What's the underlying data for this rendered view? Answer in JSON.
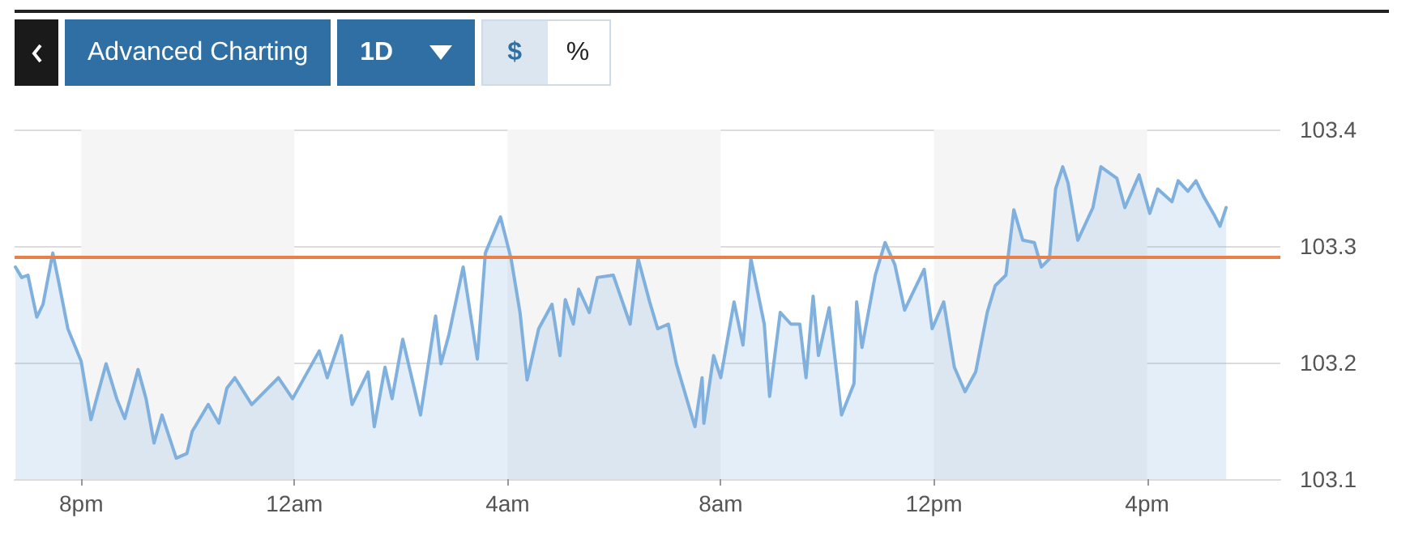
{
  "chart_data": {
    "type": "area",
    "annotations": [
      "Advanced Charting",
      "1D",
      "$",
      "%"
    ],
    "x": [
      "--01-01T18:46",
      "--01-01T18:53",
      "--01-01T19:00",
      "--01-01T19:10",
      "--01-01T19:17",
      "--01-01T19:28",
      "--01-01T19:35",
      "--01-01T19:45",
      "--01-01T20:00",
      "--01-01T20:11",
      "--01-01T20:18",
      "--01-01T20:28",
      "--01-01T20:40",
      "--01-01T20:49",
      "--01-01T21:04",
      "--01-01T21:13",
      "--01-01T21:22",
      "--01-01T21:31",
      "--01-01T21:47",
      "--01-01T21:59",
      "--01-01T22:05",
      "--01-01T22:23",
      "--01-01T22:35",
      "--01-01T22:44",
      "--01-01T22:53",
      "--01-01T23:12",
      "--01-01T23:42",
      "--01-01T23:58",
      "--01-02T00:28",
      "--01-02T00:37",
      "--01-02T00:53",
      "--01-02T01:05",
      "--01-02T01:23",
      "--01-02T01:30",
      "--01-02T01:42",
      "--01-02T01:50",
      "--01-02T02:02",
      "--01-02T02:22",
      "--01-02T02:39",
      "--01-02T02:45",
      "--01-02T02:54",
      "--01-02T03:10",
      "--01-02T03:26",
      "--01-02T03:35",
      "--01-02T03:52",
      "--01-02T04:04",
      "--01-02T04:14",
      "--01-02T04:22",
      "--01-02T04:35",
      "--01-02T04:50",
      "--01-02T04:59",
      "--01-02T05:05",
      "--01-02T05:14",
      "--01-02T05:20",
      "--01-02T05:32",
      "--01-02T05:41",
      "--01-02T05:59",
      "--01-02T06:18",
      "--01-02T06:27",
      "--01-02T06:40",
      "--01-02T06:49",
      "--01-02T07:01",
      "--01-02T07:10",
      "--01-02T07:29",
      "--01-02T07:31",
      "--01-02T07:39",
      "--01-02T07:41",
      "--01-02T07:52",
      "--01-02T08:00",
      "--01-02T08:15",
      "--01-02T08:25",
      "--01-02T08:34",
      "--01-02T08:49",
      "--01-02T08:55",
      "--01-02T09:07",
      "--01-02T09:19",
      "--01-02T09:29",
      "--01-02T09:36",
      "--01-02T09:44",
      "--01-02T09:50",
      "--01-02T10:02",
      "--01-02T10:16",
      "--01-02T10:30",
      "--01-02T10:33",
      "--01-02T10:39",
      "--01-02T10:54",
      "--01-02T11:05",
      "--01-02T11:16",
      "--01-02T11:27",
      "--01-02T11:37",
      "--01-02T11:49",
      "--01-02T11:58",
      "--01-02T12:11",
      "--01-02T12:23",
      "--01-02T12:35",
      "--01-02T12:47",
      "--01-02T13:00",
      "--01-02T13:09",
      "--01-02T13:21",
      "--01-02T13:30",
      "--01-02T13:40",
      "--01-02T13:53",
      "--01-02T14:01",
      "--01-02T14:10",
      "--01-02T14:17",
      "--01-02T14:25",
      "--01-02T14:31",
      "--01-02T14:42",
      "--01-02T14:59",
      "--01-02T15:08",
      "--01-02T15:26",
      "--01-02T15:35",
      "--01-02T15:51",
      "--01-02T16:03",
      "--01-02T16:12",
      "--01-02T16:28",
      "--01-02T16:35",
      "--01-02T16:46",
      "--01-02T16:55",
      "--01-02T17:04",
      "--01-02T17:16",
      "--01-02T17:22",
      "--01-02T17:29"
    ],
    "series": [
      {
        "color": "#7fb0de",
        "values": [
          103.282,
          103.273,
          103.275,
          103.239,
          103.25,
          103.294,
          103.268,
          103.229,
          103.201,
          103.151,
          103.171,
          103.199,
          103.169,
          103.152,
          103.194,
          103.169,
          103.131,
          103.155,
          103.118,
          103.122,
          103.141,
          103.164,
          103.148,
          103.178,
          103.187,
          103.164,
          103.187,
          103.169,
          103.21,
          103.187,
          103.223,
          103.164,
          103.192,
          103.145,
          103.196,
          103.169,
          103.22,
          103.155,
          103.24,
          103.199,
          103.224,
          103.282,
          103.203,
          103.294,
          103.325,
          103.289,
          103.243,
          103.185,
          103.229,
          103.25,
          103.206,
          103.254,
          103.233,
          103.263,
          103.243,
          103.273,
          103.275,
          103.233,
          103.289,
          103.252,
          103.229,
          103.233,
          103.199,
          103.15,
          103.145,
          103.187,
          103.148,
          103.206,
          103.187,
          103.252,
          103.215,
          103.289,
          103.233,
          103.171,
          103.243,
          103.233,
          103.233,
          103.187,
          103.257,
          103.206,
          103.247,
          103.155,
          103.182,
          103.252,
          103.213,
          103.275,
          103.303,
          103.284,
          103.245,
          103.261,
          103.28,
          103.229,
          103.252,
          103.196,
          103.175,
          103.192,
          103.243,
          103.266,
          103.275,
          103.331,
          103.305,
          103.303,
          103.282,
          103.289,
          103.349,
          103.368,
          103.354,
          103.305,
          103.333,
          103.368,
          103.358,
          103.333,
          103.361,
          103.328,
          103.349,
          103.338,
          103.356,
          103.347,
          103.356,
          103.342,
          103.326,
          103.317,
          103.333
        ]
      }
    ],
    "xlim": [
      "--01-01T18:45",
      "--01-02T18:30"
    ],
    "xticks": [
      {
        "value": "--01-01T20:00",
        "label": "8pm"
      },
      {
        "value": "--01-02T00:00",
        "label": "12am"
      },
      {
        "value": "--01-02T04:00",
        "label": "4am"
      },
      {
        "value": "--01-02T08:00",
        "label": "8am"
      },
      {
        "value": "--01-02T12:00",
        "label": "12pm"
      },
      {
        "value": "--01-02T16:00",
        "label": "4pm"
      }
    ],
    "ylim": [
      103.1,
      103.4
    ],
    "yticks": [
      103.1,
      103.2,
      103.3,
      103.4
    ],
    "grid": "y",
    "marker": "none",
    "line_style": "solid",
    "ref_lines": [
      {
        "axis": "y",
        "value": 103.29,
        "color": "#e8804a"
      }
    ],
    "bands": [
      {
        "axis": "x",
        "from": "--01-01T20:00",
        "to": "--01-02T00:00",
        "color": "#f5f5f5"
      },
      {
        "axis": "x",
        "from": "--01-02T04:00",
        "to": "--01-02T08:00",
        "color": "#f5f5f5"
      },
      {
        "axis": "x",
        "from": "--01-02T12:00",
        "to": "--01-02T16:00",
        "color": "#f5f5f5"
      }
    ]
  }
}
